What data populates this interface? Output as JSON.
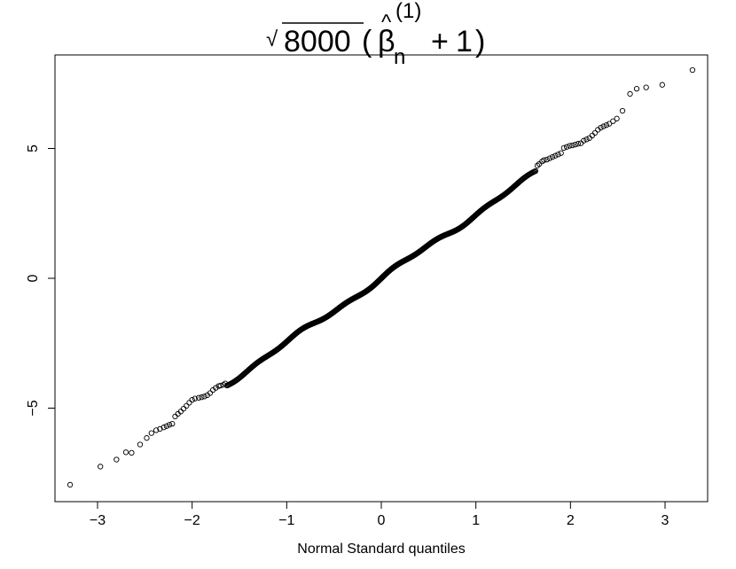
{
  "chart_data": {
    "type": "scatter",
    "title": {
      "root": "√",
      "radicand": "8000",
      "open": "(",
      "symbol": "β",
      "hat": "^",
      "subscript": "n",
      "superscript": "(1)",
      "plus": "+",
      "one": "1",
      "close": ")"
    },
    "xlabel": "Normal Standard quantiles",
    "ylabel": "",
    "xlim": [
      -3.45,
      3.45
    ],
    "ylim": [
      -8.6,
      8.6
    ],
    "x_ticks": [
      -3,
      -2,
      -1,
      0,
      1,
      2,
      3
    ],
    "x_tick_labels": [
      "−3",
      "−2",
      "−1",
      "0",
      "1",
      "2",
      "3"
    ],
    "y_ticks": [
      -5,
      0,
      5
    ],
    "y_tick_labels": [
      "−5",
      "0",
      "5"
    ],
    "grid": false,
    "legend": "none",
    "marker": "open-circle",
    "point_color": "#000000",
    "n_points": 1000,
    "series": [
      {
        "values": [
          [
            -3.29,
            -7.95
          ],
          [
            -2.97,
            -7.25
          ],
          [
            -2.8,
            -6.98
          ],
          [
            -2.7,
            -6.7
          ],
          [
            -2.64,
            -6.72
          ],
          [
            -2.55,
            -6.4
          ],
          [
            -2.48,
            -6.15
          ],
          [
            -2.43,
            -5.96
          ],
          [
            -2.38,
            -5.85
          ],
          [
            -2.34,
            -5.8
          ],
          [
            -2.3,
            -5.74
          ],
          [
            -2.27,
            -5.69
          ],
          [
            -2.24,
            -5.64
          ],
          [
            -2.21,
            -5.6
          ],
          [
            -2.18,
            -5.32
          ],
          [
            -2.15,
            -5.22
          ],
          [
            -2.12,
            -5.13
          ],
          [
            -2.09,
            -5.02
          ],
          [
            -2.06,
            -4.91
          ],
          [
            -2.03,
            -4.79
          ],
          [
            -2.0,
            -4.68
          ],
          [
            -1.97,
            -4.63
          ],
          [
            -1.93,
            -4.6
          ],
          [
            -1.9,
            -4.58
          ],
          [
            -1.87,
            -4.55
          ],
          [
            -1.84,
            -4.5
          ],
          [
            -1.81,
            -4.42
          ],
          [
            -1.78,
            -4.3
          ],
          [
            -1.75,
            -4.22
          ],
          [
            -1.72,
            -4.15
          ],
          [
            -1.7,
            -4.13
          ],
          [
            -1.67,
            -4.1
          ],
          [
            -1.65,
            -4.05
          ],
          [
            1.65,
            4.34
          ],
          [
            1.67,
            4.4
          ],
          [
            1.7,
            4.5
          ],
          [
            1.72,
            4.55
          ],
          [
            1.75,
            4.57
          ],
          [
            1.78,
            4.62
          ],
          [
            1.81,
            4.67
          ],
          [
            1.84,
            4.72
          ],
          [
            1.87,
            4.77
          ],
          [
            1.9,
            4.82
          ],
          [
            1.93,
            5.02
          ],
          [
            1.96,
            5.06
          ],
          [
            1.99,
            5.1
          ],
          [
            2.02,
            5.12
          ],
          [
            2.05,
            5.15
          ],
          [
            2.08,
            5.18
          ],
          [
            2.11,
            5.2
          ],
          [
            2.14,
            5.3
          ],
          [
            2.17,
            5.35
          ],
          [
            2.2,
            5.4
          ],
          [
            2.23,
            5.5
          ],
          [
            2.26,
            5.6
          ],
          [
            2.29,
            5.72
          ],
          [
            2.32,
            5.8
          ],
          [
            2.35,
            5.85
          ],
          [
            2.38,
            5.9
          ],
          [
            2.41,
            5.95
          ],
          [
            2.45,
            6.05
          ],
          [
            2.49,
            6.15
          ],
          [
            2.55,
            6.45
          ],
          [
            2.63,
            7.1
          ],
          [
            2.7,
            7.3
          ],
          [
            2.8,
            7.35
          ],
          [
            2.97,
            7.45
          ],
          [
            3.29,
            8.02
          ]
        ]
      }
    ]
  }
}
